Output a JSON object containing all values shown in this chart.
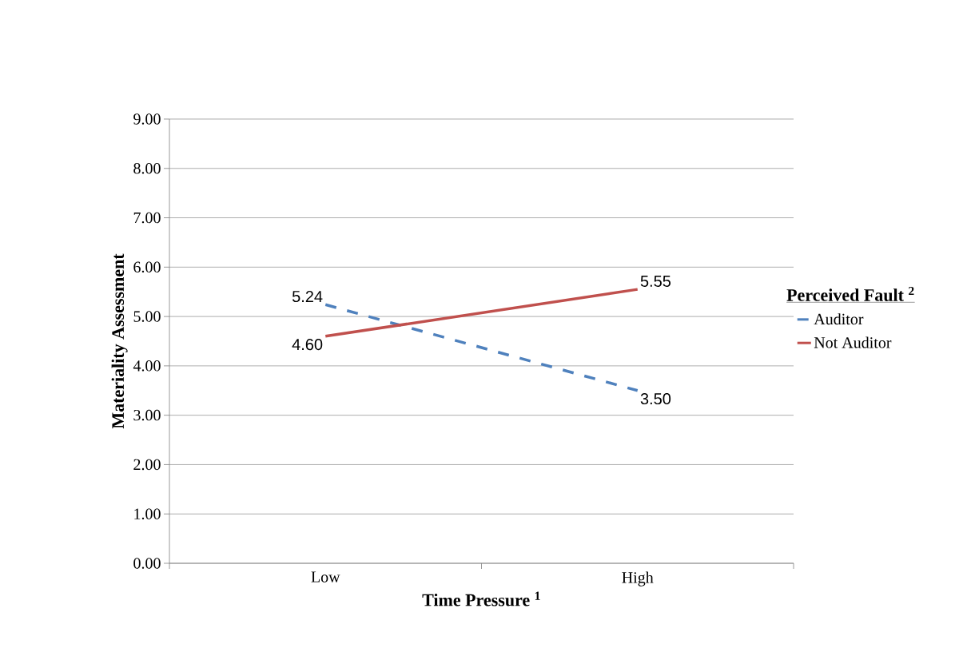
{
  "chart_data": {
    "type": "line",
    "xlabel": "Time Pressure $^{1}$",
    "ylabel": "Materiality Assessment",
    "legend_title": "Perceived Fault $^{2}$",
    "categories": [
      "Low",
      "High"
    ],
    "series": [
      {
        "name": "Auditor",
        "color": "#4f81bd",
        "values": [
          5.24,
          3.5
        ],
        "value_labels": [
          "5.24",
          "3.50"
        ],
        "line_style": "dashed"
      },
      {
        "name": "Not Auditor",
        "color": "#c0504d",
        "values": [
          4.6,
          5.55
        ],
        "value_labels": [
          "4.60",
          "5.55"
        ],
        "line_style": "solid"
      }
    ],
    "ylim": [
      0,
      9
    ],
    "yticks": [
      {
        "value": 0,
        "label": "0.00"
      },
      {
        "value": 1,
        "label": "1.00"
      },
      {
        "value": 2,
        "label": "2.00"
      },
      {
        "value": 3,
        "label": "3.00"
      },
      {
        "value": 4,
        "label": "4.00"
      },
      {
        "value": 5,
        "label": "5.00"
      },
      {
        "value": 6,
        "label": "6.00"
      },
      {
        "value": 7,
        "label": "7.00"
      },
      {
        "value": 8,
        "label": "8.00"
      },
      {
        "value": 9,
        "label": "9.00"
      }
    ],
    "grid": "y",
    "legend": "right",
    "marker": "none"
  }
}
